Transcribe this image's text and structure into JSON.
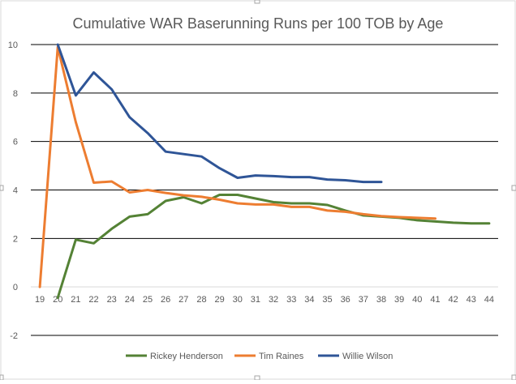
{
  "chart_data": {
    "type": "line",
    "title": "Cumulative WAR Baserunning Runs per 100 TOB by Age",
    "xlabel": "",
    "ylabel": "",
    "x": [
      19,
      20,
      21,
      22,
      23,
      24,
      25,
      26,
      27,
      28,
      29,
      30,
      31,
      32,
      33,
      34,
      35,
      36,
      37,
      38,
      39,
      40,
      41,
      42,
      43,
      44
    ],
    "ylim": [
      -2,
      10
    ],
    "yticks": [
      -2,
      0,
      2,
      4,
      6,
      8,
      10
    ],
    "grid": true,
    "legend_position": "bottom",
    "series": [
      {
        "name": "Rickey Henderson",
        "color": "#548235",
        "points": [
          [
            20,
            -0.45
          ],
          [
            21,
            1.95
          ],
          [
            22,
            1.8
          ],
          [
            23,
            2.4
          ],
          [
            24,
            2.9
          ],
          [
            25,
            3.0
          ],
          [
            26,
            3.55
          ],
          [
            27,
            3.7
          ],
          [
            28,
            3.45
          ],
          [
            29,
            3.8
          ],
          [
            30,
            3.8
          ],
          [
            31,
            3.65
          ],
          [
            32,
            3.5
          ],
          [
            33,
            3.45
          ],
          [
            34,
            3.45
          ],
          [
            35,
            3.38
          ],
          [
            36,
            3.15
          ],
          [
            37,
            2.95
          ],
          [
            38,
            2.9
          ],
          [
            39,
            2.85
          ],
          [
            40,
            2.75
          ],
          [
            41,
            2.7
          ],
          [
            42,
            2.65
          ],
          [
            43,
            2.62
          ],
          [
            44,
            2.62
          ]
        ]
      },
      {
        "name": "Tim Raines",
        "color": "#ED7D31",
        "points": [
          [
            19,
            0.0
          ],
          [
            20,
            9.9
          ],
          [
            21,
            6.8
          ],
          [
            22,
            4.3
          ],
          [
            23,
            4.35
          ],
          [
            24,
            3.9
          ],
          [
            25,
            4.0
          ],
          [
            26,
            3.88
          ],
          [
            27,
            3.78
          ],
          [
            28,
            3.72
          ],
          [
            29,
            3.6
          ],
          [
            30,
            3.45
          ],
          [
            31,
            3.4
          ],
          [
            32,
            3.4
          ],
          [
            33,
            3.3
          ],
          [
            34,
            3.3
          ],
          [
            35,
            3.15
          ],
          [
            36,
            3.1
          ],
          [
            37,
            3.0
          ],
          [
            38,
            2.92
          ],
          [
            39,
            2.88
          ],
          [
            40,
            2.85
          ],
          [
            41,
            2.82
          ]
        ]
      },
      {
        "name": "Willie Wilson",
        "color": "#2F5597",
        "points": [
          [
            20,
            10.0
          ],
          [
            21,
            7.9
          ],
          [
            22,
            8.85
          ],
          [
            23,
            8.15
          ],
          [
            24,
            7.0
          ],
          [
            25,
            6.35
          ],
          [
            26,
            5.58
          ],
          [
            27,
            5.48
          ],
          [
            28,
            5.38
          ],
          [
            29,
            4.9
          ],
          [
            30,
            4.5
          ],
          [
            31,
            4.6
          ],
          [
            32,
            4.57
          ],
          [
            33,
            4.53
          ],
          [
            34,
            4.53
          ],
          [
            35,
            4.43
          ],
          [
            36,
            4.4
          ],
          [
            37,
            4.33
          ],
          [
            38,
            4.33
          ]
        ]
      }
    ]
  }
}
